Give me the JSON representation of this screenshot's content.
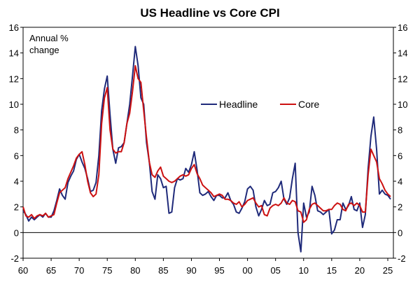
{
  "chart_data": {
    "type": "line",
    "title": "US Headline vs Core CPI",
    "annotation": [
      "Annual %",
      "change"
    ],
    "xlabel": "",
    "ylabel": "",
    "xlim": [
      1960,
      2026
    ],
    "ylim": [
      -2,
      16
    ],
    "x_ticks": [
      1960,
      1965,
      1970,
      1975,
      1980,
      1985,
      1990,
      1995,
      2000,
      2005,
      2010,
      2015,
      2020,
      2025
    ],
    "x_tick_labels": [
      "60",
      "65",
      "70",
      "75",
      "80",
      "85",
      "90",
      "95",
      "00",
      "05",
      "10",
      "15",
      "20",
      "25"
    ],
    "y_ticks": [
      -2,
      0,
      2,
      4,
      6,
      8,
      10,
      12,
      14,
      16
    ],
    "y_tick_labels": [
      "-2",
      "0",
      "2",
      "4",
      "6",
      "8",
      "10",
      "12",
      "14",
      "16"
    ],
    "grid": false,
    "legend": "center-right",
    "series": [
      {
        "name": "Headline",
        "color": "#1f2a7a",
        "x": [
          1960,
          1960.5,
          1961,
          1961.5,
          1962,
          1962.5,
          1963,
          1963.5,
          1964,
          1964.5,
          1965,
          1965.5,
          1966,
          1966.5,
          1967,
          1967.5,
          1968,
          1968.5,
          1969,
          1969.5,
          1970,
          1970.5,
          1971,
          1971.5,
          1972,
          1972.5,
          1973,
          1973.5,
          1974,
          1974.5,
          1975,
          1975.5,
          1976,
          1976.5,
          1977,
          1977.5,
          1978,
          1978.5,
          1979,
          1979.5,
          1980,
          1980.5,
          1981,
          1981.5,
          1982,
          1982.5,
          1983,
          1983.5,
          1984,
          1984.5,
          1985,
          1985.5,
          1986,
          1986.5,
          1987,
          1987.5,
          1988,
          1988.5,
          1989,
          1989.5,
          1990,
          1990.5,
          1991,
          1991.5,
          1992,
          1992.5,
          1993,
          1993.5,
          1994,
          1994.5,
          1995,
          1995.5,
          1996,
          1996.5,
          1997,
          1997.5,
          1998,
          1998.5,
          1999,
          1999.5,
          2000,
          2000.5,
          2001,
          2001.5,
          2002,
          2002.5,
          2003,
          2003.5,
          2004,
          2004.5,
          2005,
          2005.5,
          2006,
          2006.5,
          2007,
          2007.5,
          2008,
          2008.5,
          2009,
          2009.5,
          2010,
          2010.5,
          2011,
          2011.5,
          2012,
          2012.5,
          2013,
          2013.5,
          2014,
          2014.5,
          2015,
          2015.5,
          2016,
          2016.5,
          2017,
          2017.5,
          2018,
          2018.5,
          2019,
          2019.5,
          2020,
          2020.5,
          2021,
          2021.5,
          2022,
          2022.5,
          2023,
          2023.5,
          2024,
          2024.5,
          2025,
          2025.5
        ],
        "values": [
          1.7,
          1.4,
          0.9,
          1.2,
          1.0,
          1.2,
          1.4,
          1.2,
          1.5,
          1.2,
          1.2,
          1.7,
          2.5,
          3.4,
          2.9,
          2.6,
          3.9,
          4.4,
          4.8,
          5.7,
          6.1,
          5.5,
          5.0,
          4.2,
          3.2,
          3.3,
          3.9,
          6.0,
          9.5,
          11.2,
          12.2,
          9.2,
          6.5,
          5.4,
          6.6,
          6.7,
          7.0,
          8.5,
          10.0,
          12.2,
          14.5,
          13.0,
          10.5,
          10.0,
          7.0,
          5.5,
          3.2,
          2.6,
          4.5,
          4.2,
          3.5,
          3.6,
          1.5,
          1.6,
          3.5,
          4.2,
          4.1,
          4.2,
          5.0,
          4.7,
          5.3,
          6.3,
          4.9,
          3.1,
          2.9,
          3.0,
          3.2,
          2.8,
          2.5,
          2.9,
          2.9,
          2.7,
          2.7,
          3.1,
          2.5,
          2.2,
          1.6,
          1.5,
          1.9,
          2.4,
          3.4,
          3.6,
          3.3,
          2.0,
          1.3,
          1.8,
          2.5,
          2.1,
          2.2,
          3.1,
          3.2,
          3.5,
          4.0,
          2.6,
          2.2,
          2.7,
          4.2,
          5.4,
          0.0,
          -1.5,
          2.3,
          1.2,
          1.6,
          3.6,
          2.9,
          1.7,
          1.6,
          1.4,
          1.6,
          1.8,
          -0.1,
          0.2,
          1.0,
          1.0,
          2.3,
          1.8,
          2.1,
          2.8,
          1.8,
          1.7,
          2.3,
          0.4,
          1.4,
          5.0,
          7.5,
          9.0,
          6.5,
          3.0,
          3.3,
          3.0,
          2.9,
          2.6
        ]
      },
      {
        "name": "Core",
        "color": "#cc1111",
        "x": [
          1960,
          1960.5,
          1961,
          1961.5,
          1962,
          1962.5,
          1963,
          1963.5,
          1964,
          1964.5,
          1965,
          1965.5,
          1966,
          1966.5,
          1967,
          1967.5,
          1968,
          1968.5,
          1969,
          1969.5,
          1970,
          1970.5,
          1971,
          1971.5,
          1972,
          1972.5,
          1973,
          1973.5,
          1974,
          1974.5,
          1975,
          1975.5,
          1976,
          1976.5,
          1977,
          1977.5,
          1978,
          1978.5,
          1979,
          1979.5,
          1980,
          1980.5,
          1981,
          1981.5,
          1982,
          1982.5,
          1983,
          1983.5,
          1984,
          1984.5,
          1985,
          1985.5,
          1986,
          1986.5,
          1987,
          1987.5,
          1988,
          1988.5,
          1989,
          1989.5,
          1990,
          1990.5,
          1991,
          1991.5,
          1992,
          1992.5,
          1993,
          1993.5,
          1994,
          1994.5,
          1995,
          1995.5,
          1996,
          1996.5,
          1997,
          1997.5,
          1998,
          1998.5,
          1999,
          1999.5,
          2000,
          2000.5,
          2001,
          2001.5,
          2002,
          2002.5,
          2003,
          2003.5,
          2004,
          2004.5,
          2005,
          2005.5,
          2006,
          2006.5,
          2007,
          2007.5,
          2008,
          2008.5,
          2009,
          2009.5,
          2010,
          2010.5,
          2011,
          2011.5,
          2012,
          2012.5,
          2013,
          2013.5,
          2014,
          2014.5,
          2015,
          2015.5,
          2016,
          2016.5,
          2017,
          2017.5,
          2018,
          2018.5,
          2019,
          2019.5,
          2020,
          2020.5,
          2021,
          2021.5,
          2022,
          2022.5,
          2023,
          2023.5,
          2024,
          2024.5,
          2025,
          2025.5
        ],
        "values": [
          2.0,
          1.3,
          1.2,
          1.4,
          1.1,
          1.3,
          1.4,
          1.3,
          1.5,
          1.2,
          1.3,
          1.4,
          2.3,
          3.1,
          3.3,
          3.5,
          4.2,
          4.7,
          5.2,
          5.8,
          6.1,
          6.3,
          5.3,
          4.0,
          3.1,
          2.8,
          3.0,
          4.5,
          8.5,
          10.5,
          11.3,
          8.0,
          6.5,
          6.2,
          6.3,
          6.3,
          7.0,
          8.5,
          9.3,
          11.0,
          13.0,
          12.0,
          11.7,
          9.5,
          7.4,
          5.5,
          4.5,
          4.3,
          4.8,
          5.1,
          4.4,
          4.2,
          4.0,
          3.9,
          4.0,
          4.2,
          4.4,
          4.5,
          4.4,
          4.5,
          5.0,
          5.3,
          4.6,
          4.2,
          3.7,
          3.5,
          3.3,
          3.1,
          2.8,
          2.9,
          3.0,
          2.9,
          2.6,
          2.6,
          2.5,
          2.3,
          2.2,
          2.4,
          2.0,
          2.2,
          2.5,
          2.6,
          2.7,
          2.3,
          2.0,
          2.1,
          1.4,
          1.3,
          1.9,
          2.1,
          2.2,
          2.1,
          2.3,
          2.7,
          2.3,
          2.2,
          2.5,
          2.4,
          1.7,
          1.6,
          0.8,
          1.0,
          1.8,
          2.2,
          2.3,
          2.1,
          1.9,
          1.7,
          1.7,
          1.8,
          1.8,
          2.1,
          2.3,
          2.2,
          1.8,
          1.7,
          2.2,
          2.3,
          2.1,
          2.3,
          2.1,
          1.6,
          1.6,
          4.5,
          6.5,
          6.0,
          5.5,
          4.2,
          3.8,
          3.3,
          3.0,
          2.8
        ]
      }
    ]
  }
}
